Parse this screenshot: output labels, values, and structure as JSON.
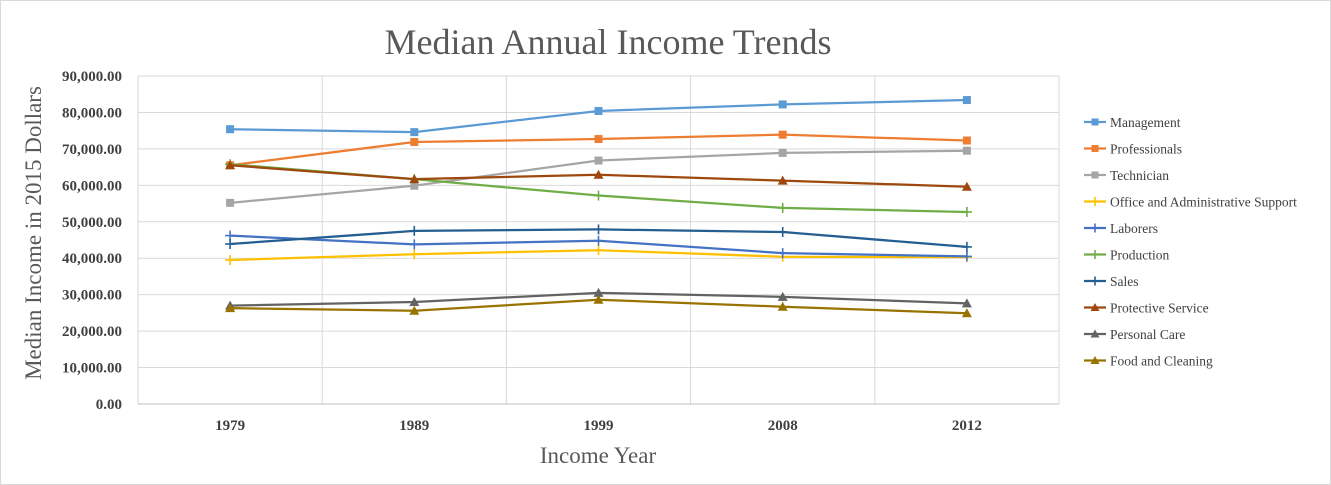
{
  "chart_data": {
    "type": "line",
    "title": "Median Annual Income Trends",
    "xlabel": "Income Year",
    "ylabel": "Median Income in 2015 Dollars",
    "categories": [
      "1979",
      "1989",
      "1999",
      "2008",
      "2012"
    ],
    "ylim": [
      0,
      90000
    ],
    "ytick_step": 10000,
    "ytick_labels": [
      "0.00",
      "10,000.00",
      "20,000.00",
      "30,000.00",
      "40,000.00",
      "50,000.00",
      "60,000.00",
      "70,000.00",
      "80,000.00",
      "90,000.00"
    ],
    "grid": true,
    "legend_position": "right",
    "series": [
      {
        "name": "Management",
        "color": "#5b9bd5",
        "marker": "square",
        "values": [
          75400,
          74600,
          80400,
          82200,
          83400
        ]
      },
      {
        "name": "Professionals",
        "color": "#ed7d31",
        "marker": "square",
        "values": [
          65500,
          71900,
          72700,
          73900,
          72300
        ]
      },
      {
        "name": "Technician",
        "color": "#a5a5a5",
        "marker": "square",
        "values": [
          55200,
          59900,
          66800,
          68900,
          69500
        ]
      },
      {
        "name": "Office and Administrative Support",
        "color": "#ffc000",
        "marker": "plus",
        "values": [
          39500,
          41100,
          42200,
          40400,
          40300
        ]
      },
      {
        "name": "Laborers",
        "color": "#4472c4",
        "marker": "plus",
        "values": [
          46200,
          43800,
          44800,
          41400,
          40500
        ]
      },
      {
        "name": "Production",
        "color": "#70ad47",
        "marker": "plus",
        "values": [
          65800,
          61700,
          57200,
          53800,
          52700
        ]
      },
      {
        "name": "Sales",
        "color": "#255e91",
        "marker": "plus",
        "values": [
          43900,
          47500,
          47900,
          47200,
          43100
        ]
      },
      {
        "name": "Protective Service",
        "color": "#9e480e",
        "marker": "triangle",
        "values": [
          65500,
          61700,
          62900,
          61300,
          59600
        ]
      },
      {
        "name": "Personal Care",
        "color": "#636363",
        "marker": "triangle",
        "values": [
          27000,
          28000,
          30500,
          29400,
          27600
        ]
      },
      {
        "name": "Food and Cleaning",
        "color": "#997300",
        "marker": "triangle",
        "values": [
          26300,
          25600,
          28600,
          26700,
          24900
        ]
      }
    ]
  }
}
